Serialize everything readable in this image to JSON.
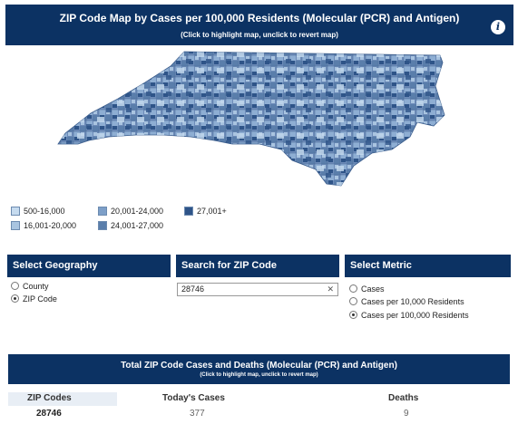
{
  "header": {
    "title": "ZIP Code Map by Cases per 100,000 Residents (Molecular (PCR) and Antigen)",
    "subtitle": "(Click to highlight map, unclick to revert map)",
    "info_icon": "info-icon"
  },
  "legend": [
    {
      "label": "500-16,000",
      "color": "#c6dbef"
    },
    {
      "label": "16,001-20,000",
      "color": "#a9c4e0"
    },
    {
      "label": "20,001-24,000",
      "color": "#7d9fc8"
    },
    {
      "label": "24,001-27,000",
      "color": "#5a7eab"
    },
    {
      "label": "27,001+",
      "color": "#2e5488"
    }
  ],
  "geography": {
    "heading": "Select Geography",
    "options": [
      {
        "label": "County",
        "selected": false
      },
      {
        "label": "ZIP Code",
        "selected": true
      }
    ]
  },
  "search": {
    "heading": "Search for ZIP Code",
    "value": "28746",
    "clear_icon": "close-icon"
  },
  "metric": {
    "heading": "Select Metric",
    "options": [
      {
        "label": "Cases",
        "selected": false
      },
      {
        "label": "Cases per 10,000 Residents",
        "selected": false
      },
      {
        "label": "Cases per 100,000 Residents",
        "selected": true
      }
    ]
  },
  "table": {
    "title": "Total ZIP Code Cases and Deaths (Molecular (PCR) and Antigen)",
    "subtitle": "(Click to highlight map, unclick to revert map)",
    "columns": [
      "ZIP Codes",
      "Today's Cases",
      "Deaths"
    ],
    "rows": [
      {
        "zip": "28746",
        "cases": "377",
        "deaths": "9"
      }
    ]
  },
  "colors": {
    "header_bg": "#0c3263",
    "map_base": "#6d8bb8"
  }
}
